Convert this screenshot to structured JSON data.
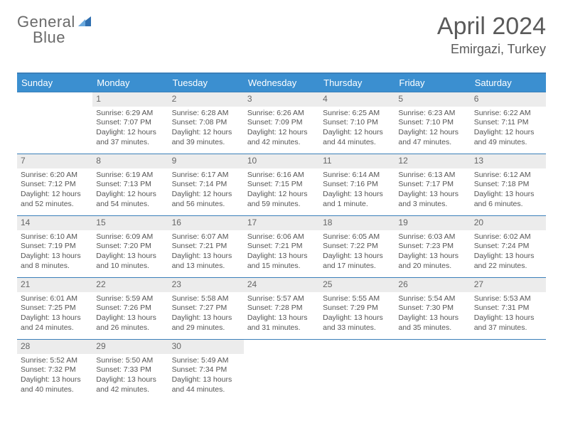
{
  "logo": {
    "word1": "General",
    "word2": "Blue"
  },
  "title": "April 2024",
  "location": "Emirgazi, Turkey",
  "colors": {
    "header_bar": "#3b8fd0",
    "border": "#3b7fb9",
    "daynum_bg": "#ececec",
    "text": "#555555",
    "logo_blue": "#2f6fb0"
  },
  "dow": [
    "Sunday",
    "Monday",
    "Tuesday",
    "Wednesday",
    "Thursday",
    "Friday",
    "Saturday"
  ],
  "weeks": [
    [
      {
        "n": "",
        "lines": []
      },
      {
        "n": "1",
        "lines": [
          "Sunrise: 6:29 AM",
          "Sunset: 7:07 PM",
          "Daylight: 12 hours and 37 minutes."
        ]
      },
      {
        "n": "2",
        "lines": [
          "Sunrise: 6:28 AM",
          "Sunset: 7:08 PM",
          "Daylight: 12 hours and 39 minutes."
        ]
      },
      {
        "n": "3",
        "lines": [
          "Sunrise: 6:26 AM",
          "Sunset: 7:09 PM",
          "Daylight: 12 hours and 42 minutes."
        ]
      },
      {
        "n": "4",
        "lines": [
          "Sunrise: 6:25 AM",
          "Sunset: 7:10 PM",
          "Daylight: 12 hours and 44 minutes."
        ]
      },
      {
        "n": "5",
        "lines": [
          "Sunrise: 6:23 AM",
          "Sunset: 7:10 PM",
          "Daylight: 12 hours and 47 minutes."
        ]
      },
      {
        "n": "6",
        "lines": [
          "Sunrise: 6:22 AM",
          "Sunset: 7:11 PM",
          "Daylight: 12 hours and 49 minutes."
        ]
      }
    ],
    [
      {
        "n": "7",
        "lines": [
          "Sunrise: 6:20 AM",
          "Sunset: 7:12 PM",
          "Daylight: 12 hours and 52 minutes."
        ]
      },
      {
        "n": "8",
        "lines": [
          "Sunrise: 6:19 AM",
          "Sunset: 7:13 PM",
          "Daylight: 12 hours and 54 minutes."
        ]
      },
      {
        "n": "9",
        "lines": [
          "Sunrise: 6:17 AM",
          "Sunset: 7:14 PM",
          "Daylight: 12 hours and 56 minutes."
        ]
      },
      {
        "n": "10",
        "lines": [
          "Sunrise: 6:16 AM",
          "Sunset: 7:15 PM",
          "Daylight: 12 hours and 59 minutes."
        ]
      },
      {
        "n": "11",
        "lines": [
          "Sunrise: 6:14 AM",
          "Sunset: 7:16 PM",
          "Daylight: 13 hours and 1 minute."
        ]
      },
      {
        "n": "12",
        "lines": [
          "Sunrise: 6:13 AM",
          "Sunset: 7:17 PM",
          "Daylight: 13 hours and 3 minutes."
        ]
      },
      {
        "n": "13",
        "lines": [
          "Sunrise: 6:12 AM",
          "Sunset: 7:18 PM",
          "Daylight: 13 hours and 6 minutes."
        ]
      }
    ],
    [
      {
        "n": "14",
        "lines": [
          "Sunrise: 6:10 AM",
          "Sunset: 7:19 PM",
          "Daylight: 13 hours and 8 minutes."
        ]
      },
      {
        "n": "15",
        "lines": [
          "Sunrise: 6:09 AM",
          "Sunset: 7:20 PM",
          "Daylight: 13 hours and 10 minutes."
        ]
      },
      {
        "n": "16",
        "lines": [
          "Sunrise: 6:07 AM",
          "Sunset: 7:21 PM",
          "Daylight: 13 hours and 13 minutes."
        ]
      },
      {
        "n": "17",
        "lines": [
          "Sunrise: 6:06 AM",
          "Sunset: 7:21 PM",
          "Daylight: 13 hours and 15 minutes."
        ]
      },
      {
        "n": "18",
        "lines": [
          "Sunrise: 6:05 AM",
          "Sunset: 7:22 PM",
          "Daylight: 13 hours and 17 minutes."
        ]
      },
      {
        "n": "19",
        "lines": [
          "Sunrise: 6:03 AM",
          "Sunset: 7:23 PM",
          "Daylight: 13 hours and 20 minutes."
        ]
      },
      {
        "n": "20",
        "lines": [
          "Sunrise: 6:02 AM",
          "Sunset: 7:24 PM",
          "Daylight: 13 hours and 22 minutes."
        ]
      }
    ],
    [
      {
        "n": "21",
        "lines": [
          "Sunrise: 6:01 AM",
          "Sunset: 7:25 PM",
          "Daylight: 13 hours and 24 minutes."
        ]
      },
      {
        "n": "22",
        "lines": [
          "Sunrise: 5:59 AM",
          "Sunset: 7:26 PM",
          "Daylight: 13 hours and 26 minutes."
        ]
      },
      {
        "n": "23",
        "lines": [
          "Sunrise: 5:58 AM",
          "Sunset: 7:27 PM",
          "Daylight: 13 hours and 29 minutes."
        ]
      },
      {
        "n": "24",
        "lines": [
          "Sunrise: 5:57 AM",
          "Sunset: 7:28 PM",
          "Daylight: 13 hours and 31 minutes."
        ]
      },
      {
        "n": "25",
        "lines": [
          "Sunrise: 5:55 AM",
          "Sunset: 7:29 PM",
          "Daylight: 13 hours and 33 minutes."
        ]
      },
      {
        "n": "26",
        "lines": [
          "Sunrise: 5:54 AM",
          "Sunset: 7:30 PM",
          "Daylight: 13 hours and 35 minutes."
        ]
      },
      {
        "n": "27",
        "lines": [
          "Sunrise: 5:53 AM",
          "Sunset: 7:31 PM",
          "Daylight: 13 hours and 37 minutes."
        ]
      }
    ],
    [
      {
        "n": "28",
        "lines": [
          "Sunrise: 5:52 AM",
          "Sunset: 7:32 PM",
          "Daylight: 13 hours and 40 minutes."
        ]
      },
      {
        "n": "29",
        "lines": [
          "Sunrise: 5:50 AM",
          "Sunset: 7:33 PM",
          "Daylight: 13 hours and 42 minutes."
        ]
      },
      {
        "n": "30",
        "lines": [
          "Sunrise: 5:49 AM",
          "Sunset: 7:34 PM",
          "Daylight: 13 hours and 44 minutes."
        ]
      },
      {
        "n": "",
        "lines": []
      },
      {
        "n": "",
        "lines": []
      },
      {
        "n": "",
        "lines": []
      },
      {
        "n": "",
        "lines": []
      }
    ]
  ]
}
